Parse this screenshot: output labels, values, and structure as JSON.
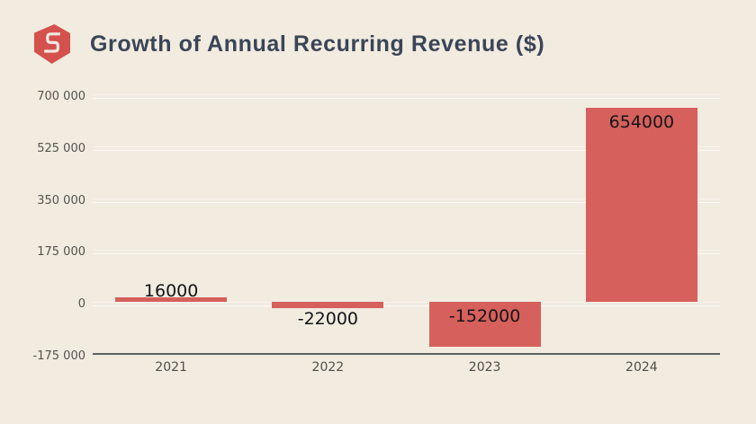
{
  "logo": {
    "name": "hexagon-s-logo",
    "color": "#d4514e"
  },
  "chart": {
    "title": "Growth of Annual Recurring Revenue ($)"
  },
  "chart_data": {
    "type": "bar",
    "categories": [
      "2021",
      "2022",
      "2023",
      "2024"
    ],
    "values": [
      16000,
      -22000,
      -152000,
      654000
    ],
    "value_labels": [
      "16000",
      "-22000",
      "-152000",
      "654000"
    ],
    "title": "Growth of Annual Recurring Revenue ($)",
    "xlabel": "",
    "ylabel": "",
    "ylim": [
      -175000,
      700000
    ],
    "yticks": [
      700000,
      525000,
      350000,
      175000,
      0,
      -175000
    ],
    "ytick_labels": [
      "700 000",
      "525 000",
      "350 000",
      "175 000",
      "0",
      "-175 000"
    ],
    "bar_color": "#d6605b",
    "grid": true,
    "legend": false
  }
}
